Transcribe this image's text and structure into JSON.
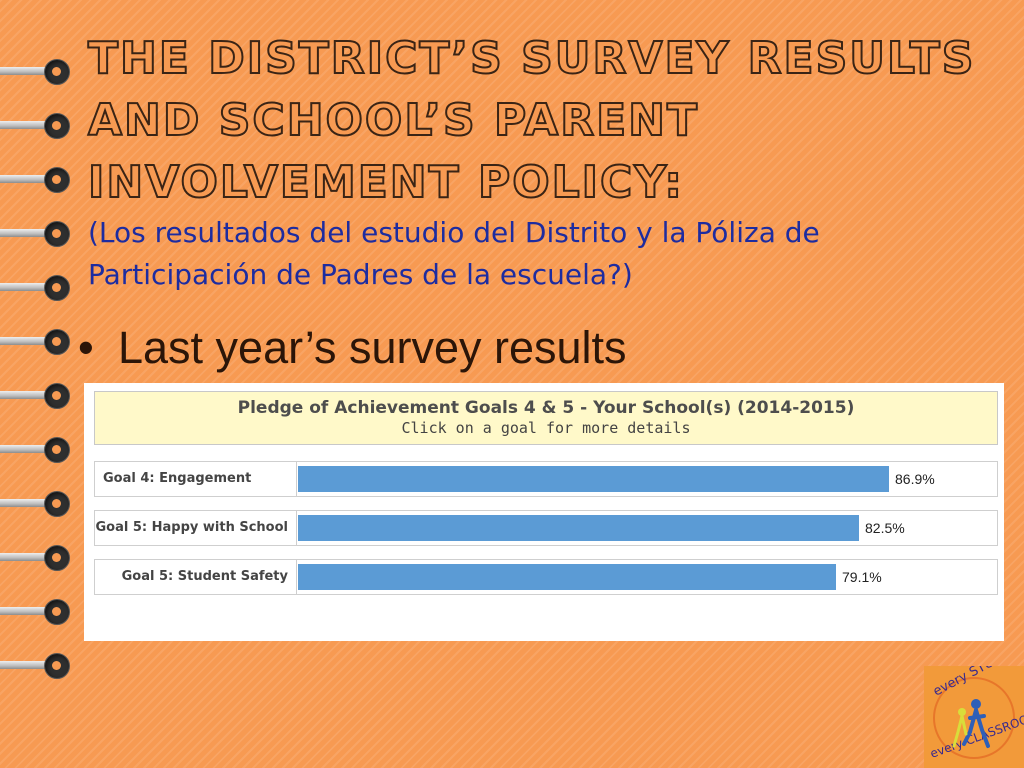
{
  "slide": {
    "title": "THE DISTRICT’S SURVEY RESULTS AND SCHOOL’S PARENT INVOLVEMENT POLICY:",
    "subtitle": "(Los resultados del estudio del Distrito y la Póliza de Participación de Padres de la escuela?)",
    "bullet": "Last year’s survey results",
    "background_color": "#f79a52",
    "title_outline_color": "#3a2415",
    "subtitle_color": "#1d2ca0"
  },
  "chart_data": {
    "type": "bar",
    "orientation": "horizontal",
    "title": "Pledge of Achievement Goals 4 & 5 - Your School(s) (2014-2015)",
    "subtitle": "Click on a goal for more details",
    "categories": [
      "Goal 4: Engagement",
      "Goal 5: Happy with School",
      "Goal 5: Student Safety"
    ],
    "values": [
      86.9,
      82.5,
      79.1
    ],
    "value_labels": [
      "86.9%",
      "82.5%",
      "79.1%"
    ],
    "xlim": [
      0,
      100
    ],
    "bar_color": "#5b9bd5",
    "header_color": "#fff9c9"
  },
  "logo": {
    "text_top": "every STUDENT",
    "text_bottom": "every CLASSROOM"
  }
}
